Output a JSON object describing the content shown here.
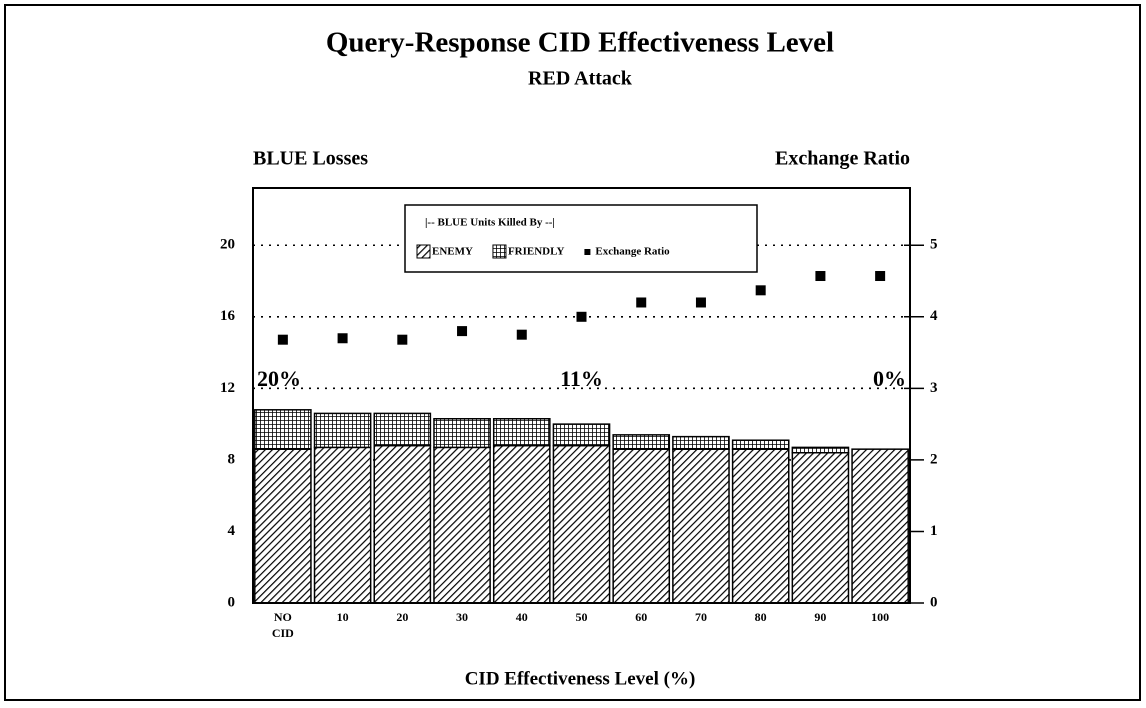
{
  "chart_data": {
    "type": "bar",
    "title": "Query-Response CID Effectiveness Level",
    "subtitle": "RED Attack",
    "ylabel": "BLUE Losses",
    "y2label": "Exchange Ratio",
    "xlabel": "CID Effectiveness Level (%)",
    "legend_title": "|-- BLUE Units Killed By --|",
    "stacked": true,
    "grid": true,
    "categories": [
      "NO CID",
      "10",
      "20",
      "30",
      "40",
      "50",
      "60",
      "70",
      "80",
      "90",
      "100"
    ],
    "series": [
      {
        "name": "ENEMY",
        "color": "#000000",
        "pattern": "diagonal",
        "values": [
          8.6,
          8.7,
          8.8,
          8.7,
          8.8,
          8.8,
          8.6,
          8.6,
          8.6,
          8.4,
          8.6
        ]
      },
      {
        "name": "FRIENDLY",
        "color": "#000000",
        "pattern": "crosshatch",
        "values": [
          2.2,
          1.9,
          1.8,
          1.6,
          1.5,
          1.2,
          0.8,
          0.7,
          0.5,
          0.3,
          0
        ]
      },
      {
        "name": "Exchange Ratio",
        "color": "#000000",
        "type": "scatter",
        "axis": "y2",
        "values": [
          3.68,
          3.7,
          3.68,
          3.8,
          3.75,
          4.0,
          4.2,
          4.2,
          4.37,
          4.57,
          4.57
        ]
      }
    ],
    "annotations": [
      {
        "text": "20%",
        "category": "NO CID"
      },
      {
        "text": "11%",
        "category": "50"
      },
      {
        "text": "0%",
        "category": "100"
      }
    ],
    "ylim": [
      0,
      23.2
    ],
    "yticks": [
      0,
      4,
      8,
      12,
      16,
      20
    ],
    "y2lim": [
      0,
      5.8
    ],
    "y2ticks": [
      0,
      1,
      2,
      3,
      4,
      5
    ]
  }
}
